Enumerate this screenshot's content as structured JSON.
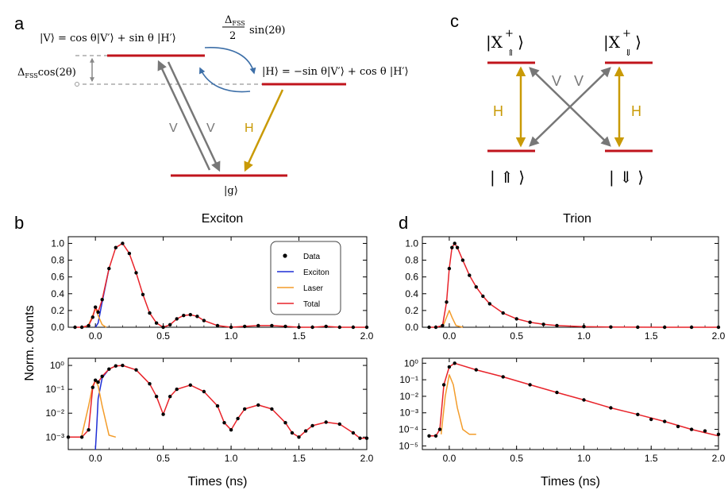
{
  "panel_labels": {
    "a": "a",
    "b": "b",
    "c": "c",
    "d": "d"
  },
  "panel_a": {
    "state_V": "|V⟩ = cos θ|V′⟩ + sin θ |H′⟩",
    "state_H": "|H⟩ = −sin θ|V′⟩ + cos θ |H′⟩",
    "state_g": "|g⟩",
    "coupling_num": "Δ",
    "coupling_num_sub": "FSS",
    "coupling_den": "2",
    "coupling_func": "sin(2θ)",
    "splitting_delta": "Δ",
    "splitting_sub": "FSS",
    "splitting_func": "cos(2θ)",
    "arrow_V1": "V",
    "arrow_V2": "V",
    "arrow_H": "H"
  },
  "panel_c": {
    "state_X_up": "|X",
    "state_X_up_sup": "+",
    "state_X_up_sub": "⇑",
    "state_X_down": "|X",
    "state_X_down_sup": "+",
    "state_X_down_sub": "⇓",
    "close_bracket": "⟩",
    "ground_up": "| ⇑ ⟩",
    "ground_down": "| ⇓ ⟩",
    "label_H_left": "H",
    "label_H_right": "H",
    "label_V_left": "V",
    "label_V_right": "V"
  },
  "colors": {
    "level": "#c0141c",
    "gray": "#777777",
    "gold": "#c99a06",
    "blue": "#3d6fa8",
    "data": "#000000",
    "exciton": "#1f2fd6",
    "laser": "#f39c2a",
    "total": "#e8232a"
  },
  "chart_data": [
    {
      "type": "line",
      "title": "Exciton",
      "panel": "b",
      "xlabel": "",
      "ylabel": "",
      "xlim": [
        -0.2,
        2.0
      ],
      "ylim": [
        0.0,
        1.08
      ],
      "yticks": [
        "0.0",
        "0.2",
        "0.4",
        "0.6",
        "0.8",
        "1.0"
      ],
      "xticks": [
        "0.0",
        "0.5",
        "1.0",
        "1.5",
        "2.0"
      ],
      "legend": {
        "position": "top-right",
        "entries": [
          "Data",
          "Exciton",
          "Laser",
          "Total"
        ]
      },
      "series": [
        {
          "name": "Data",
          "x": [
            -0.15,
            -0.1,
            -0.05,
            -0.02,
            0.0,
            0.02,
            0.05,
            0.1,
            0.15,
            0.2,
            0.25,
            0.3,
            0.35,
            0.4,
            0.45,
            0.5,
            0.55,
            0.6,
            0.65,
            0.7,
            0.75,
            0.8,
            0.9,
            1.0,
            1.1,
            1.2,
            1.3,
            1.4,
            1.5,
            1.6,
            1.7,
            1.8,
            1.9,
            2.0
          ],
          "y": [
            0.0,
            0.0,
            0.02,
            0.12,
            0.24,
            0.18,
            0.33,
            0.7,
            0.95,
            1.0,
            0.88,
            0.65,
            0.39,
            0.17,
            0.05,
            0.0,
            0.03,
            0.1,
            0.14,
            0.15,
            0.13,
            0.08,
            0.02,
            0.0,
            0.01,
            0.02,
            0.02,
            0.01,
            0.0,
            0.0,
            0.01,
            0.0,
            0.0,
            0.0
          ]
        },
        {
          "name": "Exciton",
          "x": [
            0.0,
            0.02,
            0.05,
            0.1
          ],
          "y": [
            0.0,
            0.05,
            0.3,
            0.7
          ]
        },
        {
          "name": "Laser",
          "x": [
            -0.08,
            -0.05,
            -0.02,
            0.0,
            0.02,
            0.05,
            0.08
          ],
          "y": [
            0.0,
            0.03,
            0.14,
            0.23,
            0.14,
            0.03,
            0.0
          ]
        },
        {
          "name": "Total",
          "x": [
            -0.15,
            -0.1,
            -0.05,
            -0.02,
            0.0,
            0.02,
            0.05,
            0.1,
            0.15,
            0.2,
            0.25,
            0.3,
            0.35,
            0.4,
            0.45,
            0.5,
            0.55,
            0.6,
            0.65,
            0.7,
            0.75,
            0.8,
            0.9,
            1.0,
            1.1,
            1.2,
            1.3,
            1.4,
            1.5,
            1.6,
            1.7,
            1.8,
            1.9,
            2.0
          ],
          "y": [
            0.0,
            0.0,
            0.02,
            0.12,
            0.24,
            0.18,
            0.33,
            0.7,
            0.95,
            1.0,
            0.88,
            0.65,
            0.39,
            0.17,
            0.05,
            0.0,
            0.03,
            0.1,
            0.14,
            0.15,
            0.13,
            0.08,
            0.02,
            0.0,
            0.01,
            0.02,
            0.02,
            0.01,
            0.0,
            0.0,
            0.01,
            0.0,
            0.0,
            0.0
          ]
        }
      ]
    },
    {
      "type": "line",
      "panel": "b",
      "scale": "log",
      "xlabel": "Times (ns)",
      "ylabel": "Norm. counts",
      "xlim": [
        -0.2,
        2.0
      ],
      "ylim": [
        0.0003,
        2.0
      ],
      "yticks": [
        "10⁻³",
        "10⁻²",
        "10⁻¹",
        "10⁰"
      ],
      "xticks": [
        "0.0",
        "0.5",
        "1.0",
        "1.5",
        "2.0"
      ],
      "series": [
        {
          "name": "Data",
          "x": [
            -0.2,
            -0.1,
            -0.05,
            -0.02,
            0.0,
            0.02,
            0.05,
            0.1,
            0.15,
            0.2,
            0.3,
            0.4,
            0.45,
            0.5,
            0.55,
            0.6,
            0.7,
            0.8,
            0.9,
            0.95,
            1.0,
            1.05,
            1.1,
            1.2,
            1.3,
            1.4,
            1.45,
            1.5,
            1.55,
            1.6,
            1.7,
            1.8,
            1.9,
            1.95,
            2.0
          ],
          "y": [
            0.001,
            0.001,
            0.002,
            0.12,
            0.24,
            0.2,
            0.35,
            0.7,
            0.95,
            1.0,
            0.65,
            0.17,
            0.05,
            0.009,
            0.05,
            0.1,
            0.15,
            0.08,
            0.02,
            0.004,
            0.002,
            0.006,
            0.015,
            0.022,
            0.015,
            0.004,
            0.0015,
            0.001,
            0.0018,
            0.003,
            0.0042,
            0.0035,
            0.0015,
            0.0009,
            0.0009
          ]
        },
        {
          "name": "Exciton",
          "x": [
            0.0,
            0.01,
            0.02,
            0.05,
            0.1
          ],
          "y": [
            0.0003,
            0.003,
            0.04,
            0.3,
            0.7
          ]
        },
        {
          "name": "Laser",
          "x": [
            -0.1,
            -0.05,
            -0.02,
            0.0,
            0.02,
            0.05,
            0.1,
            0.15
          ],
          "y": [
            0.0012,
            0.02,
            0.14,
            0.23,
            0.14,
            0.02,
            0.0012,
            0.001
          ]
        },
        {
          "name": "Total",
          "x": [
            -0.2,
            -0.1,
            -0.05,
            -0.02,
            0.0,
            0.02,
            0.05,
            0.1,
            0.15,
            0.2,
            0.3,
            0.4,
            0.45,
            0.5,
            0.55,
            0.6,
            0.7,
            0.8,
            0.9,
            0.95,
            1.0,
            1.05,
            1.1,
            1.2,
            1.3,
            1.4,
            1.45,
            1.5,
            1.55,
            1.6,
            1.7,
            1.8,
            1.9,
            1.95,
            2.0
          ],
          "y": [
            0.001,
            0.001,
            0.002,
            0.12,
            0.24,
            0.2,
            0.35,
            0.7,
            0.95,
            1.0,
            0.65,
            0.17,
            0.05,
            0.009,
            0.05,
            0.1,
            0.15,
            0.08,
            0.02,
            0.004,
            0.002,
            0.006,
            0.015,
            0.022,
            0.015,
            0.004,
            0.0015,
            0.001,
            0.0018,
            0.003,
            0.0042,
            0.0035,
            0.0015,
            0.0009,
            0.0009
          ]
        }
      ]
    },
    {
      "type": "line",
      "title": "Trion",
      "panel": "d",
      "xlabel": "",
      "ylabel": "",
      "xlim": [
        -0.2,
        2.0
      ],
      "ylim": [
        0.0,
        1.08
      ],
      "yticks": [
        "0.0",
        "0.2",
        "0.4",
        "0.6",
        "0.8",
        "1.0"
      ],
      "xticks": [
        "0.0",
        "0.5",
        "1.0",
        "1.5",
        "2.0"
      ],
      "series": [
        {
          "name": "Data",
          "x": [
            -0.15,
            -0.1,
            -0.05,
            -0.02,
            0.0,
            0.02,
            0.04,
            0.06,
            0.1,
            0.15,
            0.2,
            0.25,
            0.3,
            0.4,
            0.5,
            0.6,
            0.7,
            0.8,
            1.0,
            1.2,
            1.4,
            1.6,
            1.8,
            2.0
          ],
          "y": [
            0.0,
            0.0,
            0.02,
            0.3,
            0.7,
            0.95,
            1.0,
            0.95,
            0.8,
            0.62,
            0.48,
            0.37,
            0.28,
            0.17,
            0.1,
            0.06,
            0.035,
            0.02,
            0.008,
            0.003,
            0.001,
            0.0,
            0.0,
            0.0
          ]
        },
        {
          "name": "Laser",
          "x": [
            -0.05,
            -0.02,
            0.0,
            0.02,
            0.05,
            0.1
          ],
          "y": [
            0.0,
            0.12,
            0.2,
            0.12,
            0.02,
            0.0
          ]
        },
        {
          "name": "Total",
          "x": [
            -0.15,
            -0.1,
            -0.05,
            -0.02,
            0.0,
            0.02,
            0.04,
            0.06,
            0.1,
            0.15,
            0.2,
            0.25,
            0.3,
            0.4,
            0.5,
            0.6,
            0.7,
            0.8,
            1.0,
            1.2,
            1.4,
            1.6,
            1.8,
            2.0
          ],
          "y": [
            0.0,
            0.0,
            0.02,
            0.3,
            0.7,
            0.95,
            1.0,
            0.95,
            0.8,
            0.62,
            0.48,
            0.37,
            0.28,
            0.17,
            0.1,
            0.06,
            0.035,
            0.02,
            0.008,
            0.003,
            0.001,
            0.0,
            0.0,
            0.0
          ]
        }
      ]
    },
    {
      "type": "line",
      "panel": "d",
      "scale": "log",
      "xlabel": "Times (ns)",
      "ylabel": "",
      "xlim": [
        -0.2,
        2.0
      ],
      "ylim": [
        6e-06,
        2.0
      ],
      "yticks": [
        "10⁻⁵",
        "10⁻⁴",
        "10⁻³",
        "10⁻²",
        "10⁻¹",
        "10⁰"
      ],
      "xticks": [
        "0.0",
        "0.5",
        "1.0",
        "1.5",
        "2.0"
      ],
      "series": [
        {
          "name": "Data",
          "x": [
            -0.15,
            -0.1,
            -0.07,
            -0.04,
            0.0,
            0.04,
            0.2,
            0.4,
            0.6,
            0.8,
            1.0,
            1.2,
            1.4,
            1.5,
            1.6,
            1.7,
            1.8,
            1.9,
            2.0
          ],
          "y": [
            4e-05,
            4e-05,
            0.0001,
            0.05,
            0.6,
            1.0,
            0.4,
            0.15,
            0.05,
            0.017,
            0.006,
            0.002,
            0.0008,
            0.0004,
            0.0003,
            0.00015,
            0.0001,
            8e-05,
            5e-05
          ]
        },
        {
          "name": "Laser",
          "x": [
            -0.06,
            -0.03,
            0.0,
            0.03,
            0.06,
            0.1,
            0.15,
            0.2
          ],
          "y": [
            5e-05,
            0.01,
            0.2,
            0.05,
            0.002,
            0.0001,
            5e-05,
            5e-05
          ]
        },
        {
          "name": "Total",
          "x": [
            -0.15,
            -0.1,
            -0.07,
            -0.04,
            0.0,
            0.04,
            0.2,
            0.4,
            0.6,
            0.8,
            1.0,
            1.2,
            1.4,
            1.6,
            1.8,
            2.0
          ],
          "y": [
            4e-05,
            4e-05,
            0.0001,
            0.05,
            0.6,
            1.0,
            0.4,
            0.15,
            0.05,
            0.017,
            0.006,
            0.002,
            0.0008,
            0.0003,
            0.0001,
            4e-05
          ]
        }
      ]
    }
  ]
}
